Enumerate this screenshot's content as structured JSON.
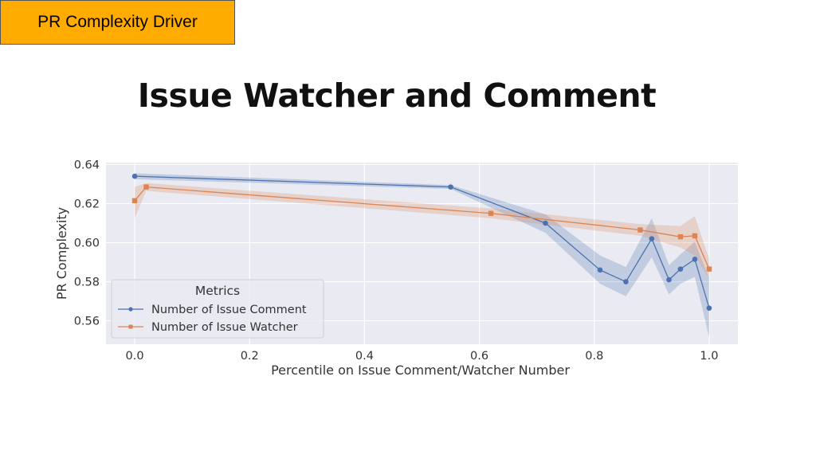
{
  "tag_label": "PR Complexity Driver",
  "slide_title": "Issue Watcher and Comment",
  "colors": {
    "tag_bg": "#ffab00",
    "plot_bg": "#eaeaf2",
    "comment": "#4c72b0",
    "watcher": "#dd8452"
  },
  "chart_data": {
    "type": "line",
    "title": "",
    "xlabel": "Percentile on Issue Comment/Watcher Number",
    "ylabel": "PR Complexity",
    "xlim": [
      -0.05,
      1.05
    ],
    "ylim": [
      0.548,
      0.641
    ],
    "xticks": [
      0.0,
      0.2,
      0.4,
      0.6,
      0.8,
      1.0
    ],
    "xtick_labels": [
      "0.0",
      "0.2",
      "0.4",
      "0.6",
      "0.8",
      "1.0"
    ],
    "yticks": [
      0.56,
      0.58,
      0.6,
      0.62,
      0.64
    ],
    "ytick_labels": [
      "0.56",
      "0.58",
      "0.60",
      "0.62",
      "0.64"
    ],
    "grid": true,
    "legend": {
      "title": "Metrics",
      "placement": "lower-left"
    },
    "series": [
      {
        "name": "Number of Issue Comment",
        "marker": "circle",
        "x": [
          0.0,
          0.55,
          0.715,
          0.81,
          0.855,
          0.9,
          0.93,
          0.95,
          0.975,
          1.0
        ],
        "y": [
          0.634,
          0.6285,
          0.61,
          0.586,
          0.58,
          0.602,
          0.581,
          0.5865,
          0.5915,
          0.5665
        ],
        "ci_low": [
          0.6325,
          0.6275,
          0.605,
          0.579,
          0.5725,
          0.5925,
          0.5735,
          0.579,
          0.5825,
          0.5515
        ],
        "ci_high": [
          0.6355,
          0.6295,
          0.6145,
          0.5935,
          0.5875,
          0.6125,
          0.5885,
          0.594,
          0.6005,
          0.5815
        ]
      },
      {
        "name": "Number of Issue Watcher",
        "marker": "square",
        "x": [
          0.0,
          0.02,
          0.62,
          0.88,
          0.95,
          0.975,
          1.0
        ],
        "y": [
          0.6215,
          0.6285,
          0.615,
          0.6065,
          0.603,
          0.6035,
          0.5865
        ],
        "ci_low": [
          0.6125,
          0.6265,
          0.6125,
          0.6035,
          0.5975,
          0.5935,
          0.5815
        ],
        "ci_high": [
          0.6285,
          0.6305,
          0.6175,
          0.6095,
          0.6085,
          0.6135,
          0.5915
        ]
      }
    ]
  }
}
